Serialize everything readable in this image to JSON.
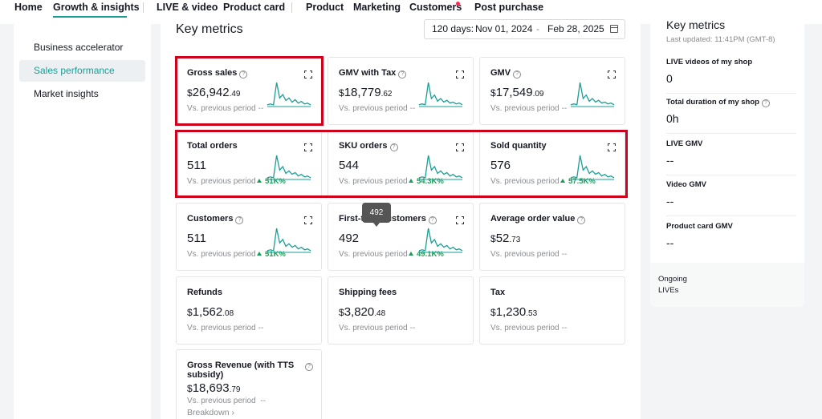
{
  "nav": {
    "items": [
      "Home",
      "Growth & insights",
      "LIVE & video",
      "Product card",
      "Product",
      "Marketing",
      "Customers",
      "Post purchase"
    ]
  },
  "sidebar": {
    "items": [
      "Business accelerator",
      "Sales performance",
      "Market insights"
    ],
    "active": "Sales performance"
  },
  "main": {
    "title": "Key metrics",
    "date_range": {
      "label": "120 days:",
      "start": "Nov 01, 2024",
      "dash": "-",
      "end": "Feb 28, 2025"
    },
    "cards": [
      {
        "title": "Gross sales",
        "help": "?",
        "currency": "$",
        "int": "26,942",
        "dec": ".49",
        "compare": "Vs. previous period",
        "change": "--",
        "up": false,
        "chart": true,
        "spark": [
          2,
          3,
          2,
          28,
          10,
          14,
          7,
          10,
          5,
          8,
          4,
          6,
          3,
          4,
          2
        ]
      },
      {
        "title": "GMV with Tax",
        "help": "?",
        "currency": "$",
        "int": "18,779",
        "dec": ".62",
        "compare": "Vs. previous period",
        "change": "--",
        "up": false,
        "chart": true,
        "spark": [
          2,
          3,
          2,
          27,
          9,
          13,
          6,
          9,
          5,
          7,
          4,
          5,
          3,
          4,
          2
        ]
      },
      {
        "title": "GMV",
        "help": "?",
        "currency": "$",
        "int": "17,549",
        "dec": ".09",
        "compare": "Vs. previous period",
        "change": "--",
        "up": false,
        "chart": true,
        "spark": [
          2,
          3,
          2,
          27,
          9,
          13,
          6,
          9,
          5,
          7,
          4,
          5,
          3,
          4,
          2
        ]
      },
      {
        "title": "Total orders",
        "help": "",
        "currency": "",
        "int": "511",
        "dec": "",
        "compare": "Vs. previous period",
        "change": "51K%",
        "up": true,
        "chart": true,
        "spark": [
          2,
          3,
          2,
          28,
          11,
          15,
          7,
          10,
          6,
          8,
          4,
          6,
          3,
          4,
          2
        ]
      },
      {
        "title": "SKU orders",
        "help": "?",
        "currency": "",
        "int": "544",
        "dec": "",
        "compare": "Vs. previous period",
        "change": "54.3K%",
        "up": true,
        "chart": true,
        "spark": [
          2,
          3,
          2,
          28,
          11,
          15,
          7,
          10,
          6,
          8,
          4,
          6,
          3,
          4,
          2
        ]
      },
      {
        "title": "Sold quantity",
        "help": "",
        "currency": "",
        "int": "576",
        "dec": "",
        "compare": "Vs. previous period",
        "change": "57.5K%",
        "up": true,
        "chart": true,
        "spark": [
          2,
          3,
          2,
          28,
          11,
          15,
          7,
          10,
          6,
          8,
          4,
          6,
          3,
          4,
          2
        ]
      },
      {
        "title": "Customers",
        "help": "?",
        "currency": "",
        "int": "511",
        "dec": "",
        "compare": "Vs. previous period",
        "change": "51K%",
        "up": true,
        "chart": true,
        "spark": [
          2,
          3,
          2,
          28,
          11,
          15,
          7,
          10,
          6,
          8,
          4,
          6,
          3,
          4,
          2
        ]
      },
      {
        "title": "First-time customers",
        "help": "?",
        "currency": "",
        "int": "492",
        "dec": "",
        "compare": "Vs. previous period",
        "change": "49.1K%",
        "up": true,
        "chart": true,
        "spark": [
          2,
          3,
          2,
          28,
          11,
          15,
          7,
          10,
          6,
          8,
          4,
          6,
          3,
          4,
          2
        ]
      },
      {
        "title": "Average order value",
        "help": "?",
        "currency": "$",
        "int": "52",
        "dec": ".73",
        "compare": "Vs. previous period",
        "change": "--",
        "up": false,
        "chart": false,
        "spark": []
      },
      {
        "title": "Refunds",
        "help": "",
        "currency": "$",
        "int": "1,562",
        "dec": ".08",
        "compare": "Vs. previous period",
        "change": "--",
        "up": false,
        "chart": false,
        "spark": []
      },
      {
        "title": "Shipping fees",
        "help": "",
        "currency": "$",
        "int": "3,820",
        "dec": ".48",
        "compare": "Vs. previous period",
        "change": "--",
        "up": false,
        "chart": false,
        "spark": []
      },
      {
        "title": "Tax",
        "help": "",
        "currency": "$",
        "int": "1,230",
        "dec": ".53",
        "compare": "Vs. previous period",
        "change": "--",
        "up": false,
        "chart": false,
        "spark": []
      }
    ],
    "gross_revenue": {
      "title_line1": "Gross Revenue (with TTS",
      "title_line2": "subsidy)",
      "help": "?",
      "currency": "$",
      "int": "18,693",
      "dec": ".79",
      "compare": "Vs. previous period",
      "change": "--",
      "breakdown": "Breakdown ›"
    },
    "tooltip": "492"
  },
  "right_panel": {
    "title": "Key metrics",
    "updated": "Last updated: 11:41PM (GMT-8)",
    "metrics": [
      {
        "label": "LIVE videos of my shop",
        "value": "0",
        "help": ""
      },
      {
        "label": "Total duration of my shop",
        "value": "0h",
        "help": "?"
      },
      {
        "label": "LIVE GMV",
        "value": "--",
        "help": ""
      },
      {
        "label": "Video GMV",
        "value": "--",
        "help": ""
      },
      {
        "label": "Product card GMV",
        "value": "--",
        "help": ""
      }
    ],
    "ongoing": "Ongoing LIVEs"
  },
  "colors": {
    "accent": "#1a9e95",
    "highlight": "#d0021b",
    "positive": "#1a9e55",
    "badge": "#fe2c55"
  }
}
